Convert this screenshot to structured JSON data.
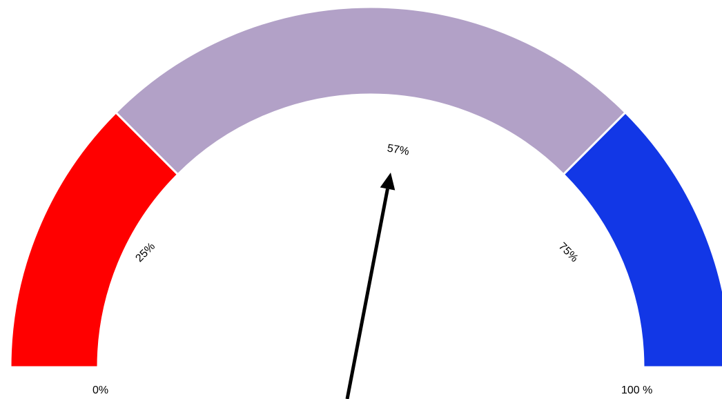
{
  "chart_data": {
    "type": "gauge",
    "scale_min": 0,
    "scale_max": 100,
    "unit": "%",
    "bands": [
      {
        "from": 0,
        "to": 25,
        "color": "#ff0000"
      },
      {
        "from": 25,
        "to": 75,
        "color": "#b2a1c7"
      },
      {
        "from": 75,
        "to": 100,
        "color": "#1237e6"
      }
    ],
    "value": 57,
    "labels": {
      "min": "0%",
      "q1": "25%",
      "value": "57%",
      "q3": "75%",
      "max": "100 %"
    },
    "needle_color": "#000000"
  }
}
